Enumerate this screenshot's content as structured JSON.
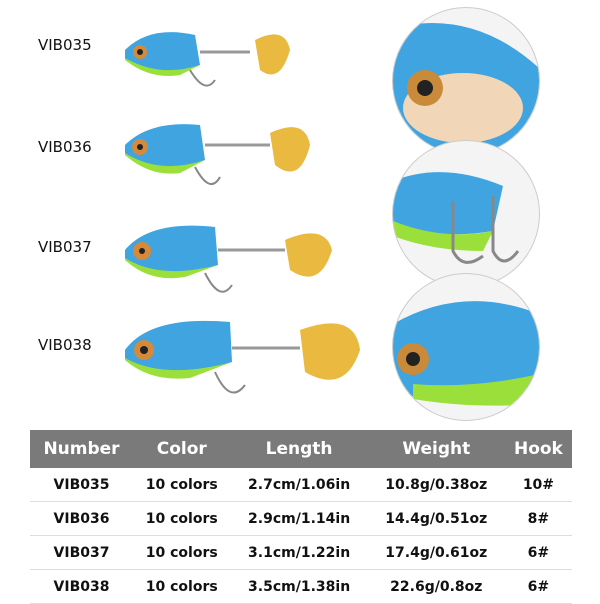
{
  "models": [
    "VIB035",
    "VIB036",
    "VIB037",
    "VIB038"
  ],
  "colors": {
    "body": "#3fa4e0",
    "belly": "#f2d6b8",
    "fin": "#9be03a",
    "blade": "#e9b940",
    "header": "#7a7a7a"
  },
  "table": {
    "headers": [
      "Number",
      "Color",
      "Length",
      "Weight",
      "Hook"
    ],
    "rows": [
      [
        "VIB035",
        "10 colors",
        "2.7cm/1.06in",
        "10.8g/0.38oz",
        "10#"
      ],
      [
        "VIB036",
        "10 colors",
        "2.9cm/1.14in",
        "14.4g/0.51oz",
        "8#"
      ],
      [
        "VIB037",
        "10 colors",
        "3.1cm/1.22in",
        "17.4g/0.61oz",
        "6#"
      ],
      [
        "VIB038",
        "10 colors",
        "3.5cm/1.38in",
        "22.6g/0.8oz",
        "6#"
      ]
    ]
  }
}
